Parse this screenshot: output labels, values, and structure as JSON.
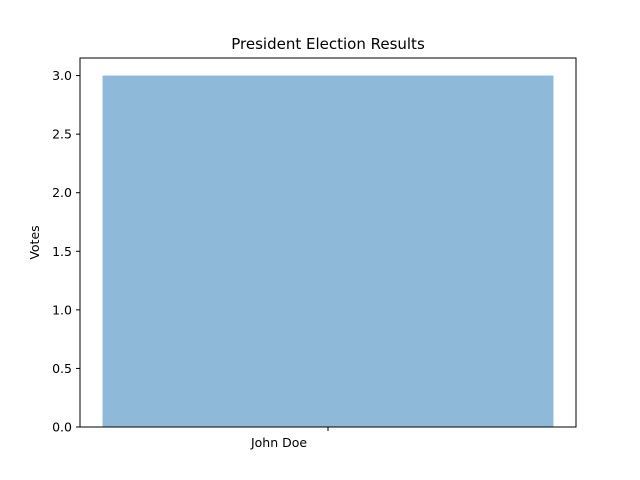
{
  "chart_data": {
    "type": "bar",
    "title": "President Election Results",
    "xlabel": "",
    "ylabel": "Votes",
    "categories": [
      "John Doe"
    ],
    "values": [
      3.0
    ],
    "ylim": [
      0,
      3.0
    ],
    "yticks": [
      "0.0",
      "0.5",
      "1.0",
      "1.5",
      "2.0",
      "2.5",
      "3.0"
    ],
    "bar_color": "#8eb9d9",
    "grid": false,
    "legend": "none"
  }
}
